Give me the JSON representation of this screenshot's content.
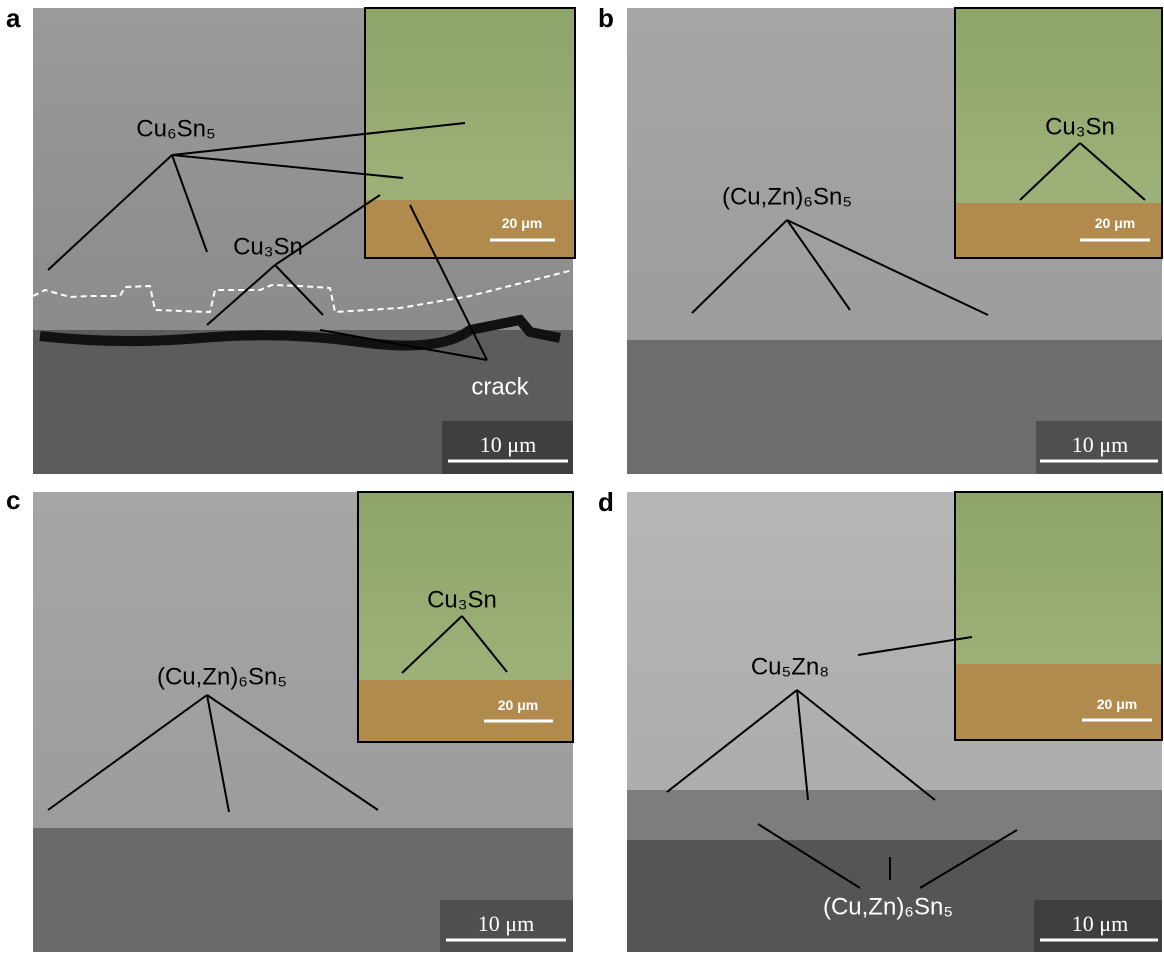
{
  "panels": [
    {
      "letter": "a",
      "labels": [
        "Cu₆Sn₅",
        "Cu₃Sn",
        "crack"
      ],
      "inset_scale": "20 μm",
      "scale": "10 μm"
    },
    {
      "letter": "b",
      "labels": [
        "Cu₃Sn",
        "(Cu,Zn)₆Sn₅"
      ],
      "inset_scale": "20 μm",
      "scale": "10 μm"
    },
    {
      "letter": "c",
      "labels": [
        "Cu₃Sn",
        "(Cu,Zn)₆Sn₅"
      ],
      "inset_scale": "20 μm",
      "scale": "10 μm"
    },
    {
      "letter": "d",
      "labels": [
        "Cu₅Zn₈",
        "(Cu,Zn)₆Sn₅"
      ],
      "inset_scale": "20 μm",
      "scale": "10 μm"
    }
  ]
}
